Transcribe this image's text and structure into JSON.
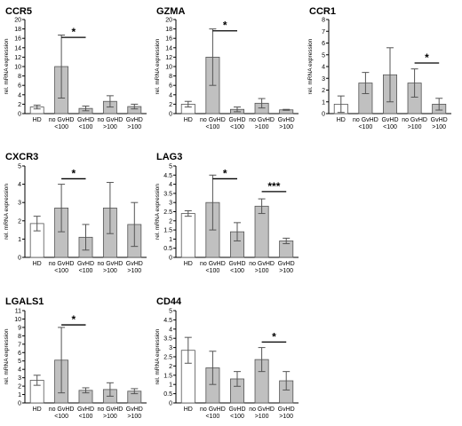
{
  "chart_data": [
    {
      "type": "bar",
      "title": "CCR5",
      "ylabel": "rel. mRNA expression",
      "ylim": [
        0,
        20
      ],
      "yticks": [
        0,
        2,
        4,
        6,
        8,
        10,
        12,
        14,
        16,
        18,
        20
      ],
      "categories": [
        [
          "HD"
        ],
        [
          "no GvHD",
          "<100"
        ],
        [
          "GvHD",
          "<100"
        ],
        [
          "no GvHD",
          ">100"
        ],
        [
          "GvHD",
          ">100"
        ]
      ],
      "values": [
        1.4,
        10.0,
        1.1,
        2.6,
        1.5
      ],
      "errors": [
        0.4,
        6.7,
        0.5,
        1.2,
        0.5
      ],
      "bar_colors": [
        "#ffffff",
        "#c0c0c0",
        "#c0c0c0",
        "#c0c0c0",
        "#c0c0c0"
      ],
      "significance": [
        {
          "from": 1,
          "to": 2,
          "y": 16.2,
          "label": "*"
        }
      ]
    },
    {
      "type": "bar",
      "title": "GZMA",
      "ylabel": "rel. mRNA expression",
      "ylim": [
        0,
        20
      ],
      "yticks": [
        0,
        2,
        4,
        6,
        8,
        10,
        12,
        14,
        16,
        18,
        20
      ],
      "categories": [
        [
          "HD"
        ],
        [
          "no GvHD",
          "<100"
        ],
        [
          "GvHD",
          "<100"
        ],
        [
          "no GvHD",
          ">100"
        ],
        [
          "GvHD",
          ">100"
        ]
      ],
      "values": [
        2.0,
        12.0,
        0.9,
        2.2,
        0.8
      ],
      "errors": [
        0.6,
        6.0,
        0.5,
        1.0,
        0.1
      ],
      "bar_colors": [
        "#ffffff",
        "#c0c0c0",
        "#c0c0c0",
        "#c0c0c0",
        "#c0c0c0"
      ],
      "significance": [
        {
          "from": 1,
          "to": 2,
          "y": 17.6,
          "label": "*"
        }
      ]
    },
    {
      "type": "bar",
      "title": "CCR1",
      "ylabel": "rel. mRNA expression",
      "ylim": [
        0,
        8
      ],
      "yticks": [
        0,
        1,
        2,
        3,
        4,
        5,
        6,
        7,
        8
      ],
      "categories": [
        [
          "HD"
        ],
        [
          "no GvHD",
          "<100"
        ],
        [
          "GvHD",
          "<100"
        ],
        [
          "no GvHD",
          ">100"
        ],
        [
          "GvHD",
          ">100"
        ]
      ],
      "values": [
        0.8,
        2.6,
        3.3,
        2.6,
        0.8
      ],
      "errors": [
        0.7,
        0.9,
        2.3,
        1.2,
        0.5
      ],
      "bar_colors": [
        "#ffffff",
        "#c0c0c0",
        "#c0c0c0",
        "#c0c0c0",
        "#c0c0c0"
      ],
      "significance": [
        {
          "from": 3,
          "to": 4,
          "y": 4.3,
          "label": "*"
        }
      ]
    },
    {
      "type": "bar",
      "title": "CXCR3",
      "ylabel": "rel. mRNA expression",
      "ylim": [
        0,
        5
      ],
      "yticks": [
        0,
        1,
        2,
        3,
        4,
        5
      ],
      "categories": [
        [
          "HD"
        ],
        [
          "no GvHD",
          "<100"
        ],
        [
          "GvHD",
          "<100"
        ],
        [
          "no GvHD",
          ">100"
        ],
        [
          "GvHD",
          ">100"
        ]
      ],
      "values": [
        1.85,
        2.7,
        1.1,
        2.7,
        1.8
      ],
      "errors": [
        0.4,
        1.3,
        0.7,
        1.4,
        1.2
      ],
      "bar_colors": [
        "#ffffff",
        "#c0c0c0",
        "#c0c0c0",
        "#c0c0c0",
        "#c0c0c0"
      ],
      "significance": [
        {
          "from": 1,
          "to": 2,
          "y": 4.3,
          "label": "*"
        }
      ]
    },
    {
      "type": "bar",
      "title": "LAG3",
      "ylabel": "rel. mRNA expression",
      "ylim": [
        0,
        5
      ],
      "yticks": [
        0,
        0.5,
        1,
        1.5,
        2,
        2.5,
        3,
        3.5,
        4,
        4.5,
        5
      ],
      "categories": [
        [
          "HD"
        ],
        [
          "no GvHD",
          "<100"
        ],
        [
          "GvHD",
          "<100"
        ],
        [
          "no GvHD",
          ">100"
        ],
        [
          "GvHD",
          ">100"
        ]
      ],
      "values": [
        2.4,
        3.0,
        1.4,
        2.8,
        0.9
      ],
      "errors": [
        0.15,
        1.5,
        0.5,
        0.4,
        0.15
      ],
      "bar_colors": [
        "#ffffff",
        "#c0c0c0",
        "#c0c0c0",
        "#c0c0c0",
        "#c0c0c0"
      ],
      "significance": [
        {
          "from": 1,
          "to": 2,
          "y": 4.3,
          "label": "*"
        },
        {
          "from": 3,
          "to": 4,
          "y": 3.6,
          "label": "***"
        }
      ]
    },
    {
      "type": "bar",
      "title": "LGALS1",
      "ylabel": "rel. mRNA expression",
      "ylim": [
        0,
        11
      ],
      "yticks": [
        0,
        1,
        2,
        3,
        4,
        5,
        6,
        7,
        8,
        9,
        10,
        11
      ],
      "categories": [
        [
          "HD"
        ],
        [
          "no GvHD",
          "<100"
        ],
        [
          "GvHD",
          "<100"
        ],
        [
          "no GvHD",
          ">100"
        ],
        [
          "GvHD",
          ">100"
        ]
      ],
      "values": [
        2.7,
        5.1,
        1.5,
        1.6,
        1.4
      ],
      "errors": [
        0.6,
        3.9,
        0.3,
        0.8,
        0.3
      ],
      "bar_colors": [
        "#ffffff",
        "#c0c0c0",
        "#c0c0c0",
        "#c0c0c0",
        "#c0c0c0"
      ],
      "significance": [
        {
          "from": 1,
          "to": 2,
          "y": 9.3,
          "label": "*"
        }
      ]
    },
    {
      "type": "bar",
      "title": "CD44",
      "ylabel": "rel. mRNA expression",
      "ylim": [
        0,
        5
      ],
      "yticks": [
        0,
        0.5,
        1,
        1.5,
        2,
        2.5,
        3,
        3.5,
        4,
        4.5,
        5
      ],
      "categories": [
        [
          "HD"
        ],
        [
          "no GvHD",
          "<100"
        ],
        [
          "GvHD",
          "<100"
        ],
        [
          "no GvHD",
          ">100"
        ],
        [
          "GvHD",
          ">100"
        ]
      ],
      "values": [
        2.85,
        1.9,
        1.3,
        2.35,
        1.2
      ],
      "errors": [
        0.7,
        0.9,
        0.4,
        0.65,
        0.5
      ],
      "bar_colors": [
        "#ffffff",
        "#c0c0c0",
        "#c0c0c0",
        "#c0c0c0",
        "#c0c0c0"
      ],
      "significance": [
        {
          "from": 3,
          "to": 4,
          "y": 3.3,
          "label": "*"
        }
      ]
    }
  ]
}
